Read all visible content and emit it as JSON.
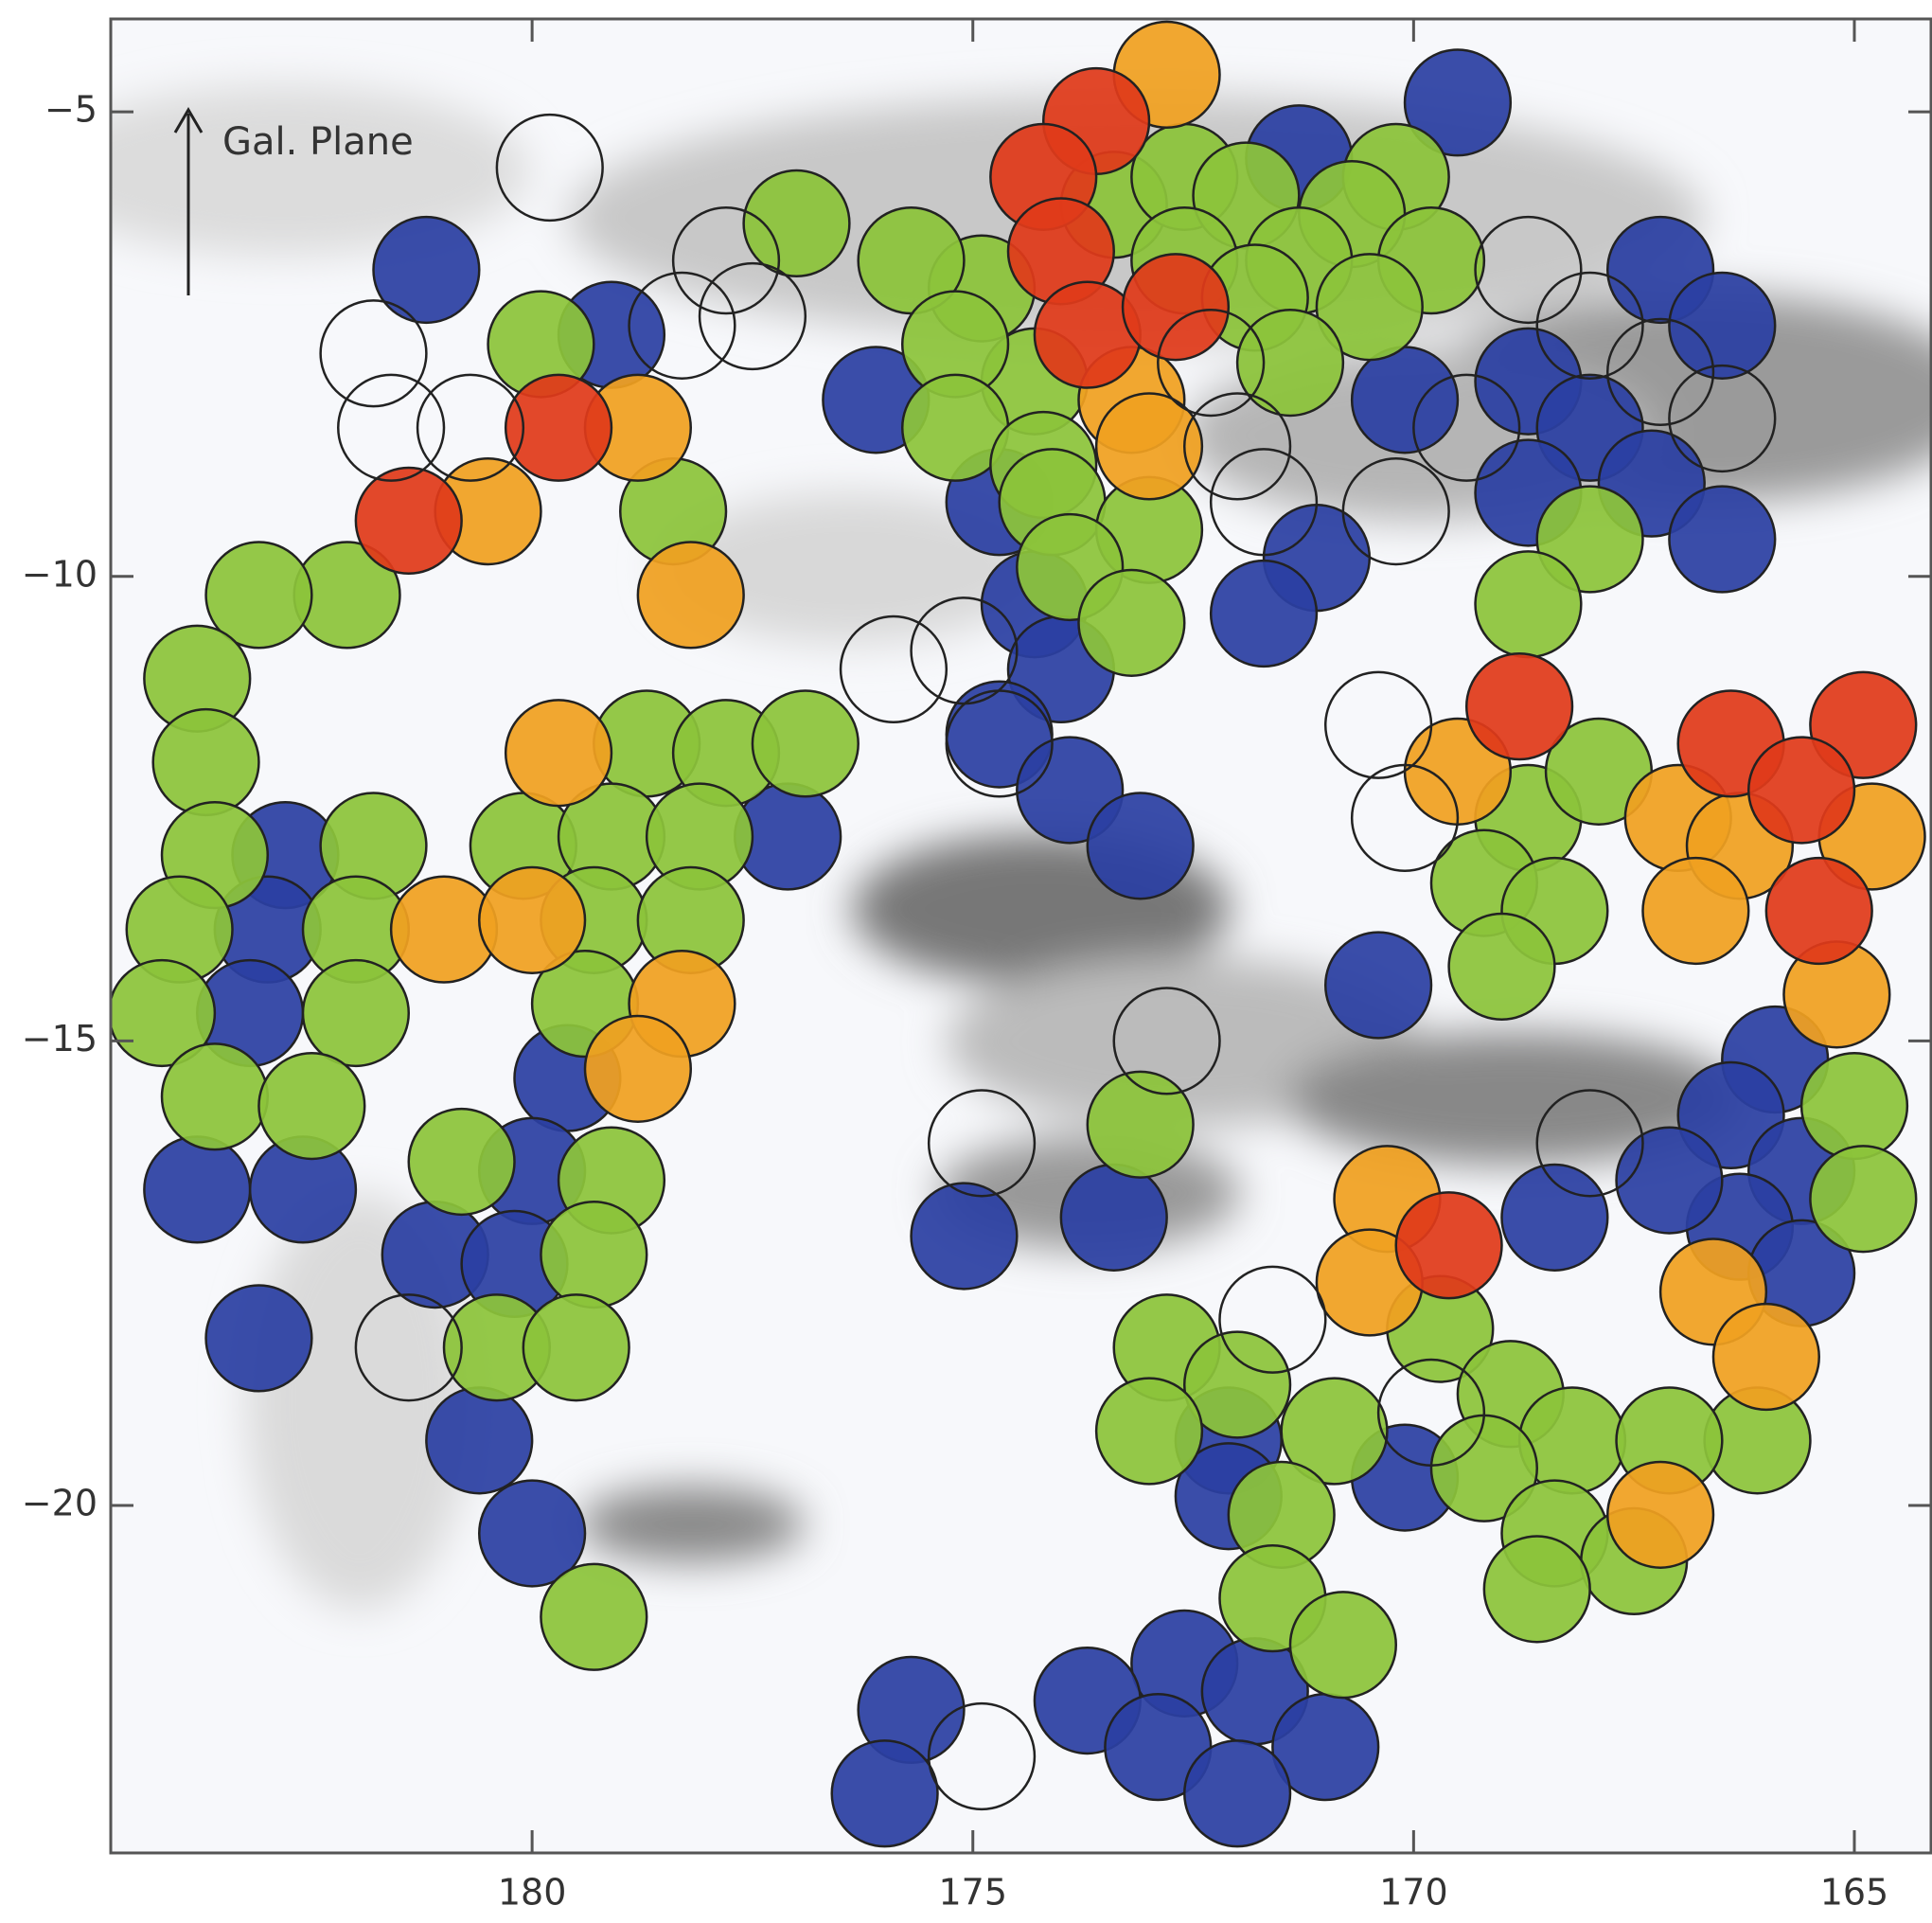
{
  "chart_data": {
    "type": "scatter",
    "annotation": "Gal. Plane",
    "xlim": [
      184.78,
      164.13
    ],
    "ylim": [
      -4.0,
      -23.74
    ],
    "xticks": [
      180,
      175,
      170,
      165
    ],
    "yticks": [
      {
        "value": -5,
        "label": "−5"
      },
      {
        "value": -10,
        "label": "−10"
      },
      {
        "value": -15,
        "label": "−15"
      },
      {
        "value": -20,
        "label": "−20"
      }
    ],
    "series": [
      {
        "color": "#2b3fa3",
        "x": [
          169.5,
          171.3,
          176.1,
          174.7,
          171.1,
          171.7,
          174.3,
          174.0,
          174.7,
          173.9,
          173.1,
          170.1,
          168.7,
          167.2,
          166.5,
          168.0,
          167.3,
          168.7,
          166.5,
          170.4,
          165.9,
          166.4,
          165.6,
          166.3,
          165.6,
          167.1,
          168.4,
          170.1,
          172.1,
          172.1,
          172.6,
          171.8,
          173.7,
          172.9,
          171.0,
          172.0,
          175.7,
          176.0,
          173.4,
          175.1,
          181.2,
          179.1,
          182.8,
          183.0,
          183.2,
          183.8,
          182.6,
          183.1,
          179.6,
          180.0,
          181.1,
          180.2,
          180.6,
          180.0,
          177.1
        ],
        "y": [
          -4.9,
          -5.5,
          -8.1,
          -9.2,
          -9.8,
          -10.4,
          -10.3,
          -11.0,
          -11.7,
          -12.3,
          -12.9,
          -8.1,
          -7.9,
          -6.7,
          -7.3,
          -8.4,
          -9.0,
          -9.1,
          -9.6,
          -14.4,
          -15.2,
          -15.8,
          -16.4,
          -17.0,
          -17.5,
          -16.5,
          -16.9,
          -19.7,
          -19.3,
          -19.9,
          -21.7,
          -22.0,
          -22.1,
          -22.6,
          -22.6,
          -23.1,
          -22.2,
          -23.1,
          -16.9,
          -17.1,
          -6.7,
          -7.4,
          -13.0,
          -13.8,
          -14.7,
          -16.6,
          -16.6,
          -18.2,
          -15.4,
          -16.4,
          -17.3,
          -17.4,
          -19.3,
          -20.3,
          -12.8
        ]
      },
      {
        "color": "#8cc43a",
        "x": [
          173.4,
          172.6,
          171.9,
          170.2,
          170.7,
          169.8,
          171.3,
          172.6,
          174.9,
          175.7,
          171.8,
          170.5,
          171.4,
          174.3,
          175.2,
          175.2,
          174.2,
          174.1,
          173.0,
          173.9,
          173.2,
          168.0,
          168.7,
          168.7,
          167.9,
          169.2,
          168.4,
          169.0,
          165.0,
          164.9,
          169.7,
          168.9,
          168.2,
          169.2,
          168.4,
          167.5,
          168.6,
          166.1,
          167.1,
          172.8,
          172.0,
          173.0,
          170.9,
          171.5,
          171.6,
          170.8,
          173.1,
          179.9,
          178.4,
          177.0,
          182.1,
          183.1,
          183.8,
          183.7,
          183.6,
          181.8,
          184.0,
          182.0,
          184.2,
          182.0,
          183.6,
          182.5,
          178.7,
          177.8,
          176.9,
          180.1,
          179.1,
          178.1,
          179.3,
          178.2,
          179.4,
          180.8,
          179.1,
          179.3,
          180.4,
          179.5,
          179.3
        ],
        "y": [
          -6.0,
          -5.7,
          -5.9,
          -5.7,
          -6.1,
          -6.6,
          -6.6,
          -6.6,
          -6.9,
          -6.6,
          -7.0,
          -7.1,
          -7.7,
          -7.9,
          -7.5,
          -8.4,
          -8.8,
          -9.2,
          -9.5,
          -9.9,
          -10.5,
          -9.6,
          -10.3,
          -12.6,
          -12.1,
          -13.3,
          -13.6,
          -14.2,
          -15.7,
          -16.7,
          -18.1,
          -18.8,
          -19.3,
          -19.6,
          -20.3,
          -20.6,
          -20.9,
          -19.3,
          -19.3,
          -18.3,
          -18.7,
          -19.2,
          -19.2,
          -20.1,
          -21.0,
          -21.5,
          -15.9,
          -7.5,
          -9.3,
          -6.2,
          -10.2,
          -10.2,
          -11.1,
          -12.0,
          -13.0,
          -12.9,
          -13.8,
          -13.8,
          -14.7,
          -14.7,
          -15.6,
          -15.7,
          -11.8,
          -11.9,
          -11.8,
          -12.9,
          -12.8,
          -12.8,
          -13.7,
          -13.7,
          -14.6,
          -16.3,
          -16.5,
          -17.3,
          -18.3,
          -18.3,
          -21.2
        ]
      },
      {
        "color": "#f0a020",
        "x": [
          172.8,
          173.2,
          173.0,
          178.8,
          180.5,
          178.2,
          169.5,
          167.0,
          166.3,
          164.8,
          166.8,
          165.2,
          170.3,
          170.5,
          166.6,
          166.0,
          167.2,
          181.0,
          180.0,
          179.7,
          178.3,
          178.8
        ],
        "y": [
          -4.6,
          -8.1,
          -8.6,
          -8.4,
          -9.3,
          -10.2,
          -12.1,
          -12.6,
          -12.9,
          -12.8,
          -13.6,
          -14.5,
          -16.7,
          -17.6,
          -17.7,
          -18.4,
          -20.1,
          -13.8,
          -13.7,
          -11.9,
          -14.6,
          -15.3
        ]
      },
      {
        "color": "#e03a1a",
        "x": [
          173.6,
          174.2,
          174.0,
          173.7,
          172.7,
          179.7,
          181.4,
          168.8,
          166.4,
          164.9,
          165.6,
          165.4,
          169.6
        ],
        "y": [
          -5.1,
          -5.7,
          -6.5,
          -7.4,
          -7.1,
          -8.4,
          -9.4,
          -11.4,
          -11.8,
          -11.6,
          -12.3,
          -13.6,
          -17.2
        ]
      },
      {
        "color": "none",
        "x": [
          179.8,
          181.8,
          181.6,
          180.7,
          178.3,
          177.5,
          177.8,
          172.3,
          172.0,
          171.7,
          170.2,
          169.4,
          168.7,
          168.0,
          167.2,
          166.5,
          170.4,
          170.1,
          168.0,
          171.6,
          169.8,
          174.9,
          172.8,
          174.9,
          175.9,
          175.1,
          174.7,
          181.4
        ],
        "y": [
          -5.6,
          -7.6,
          -8.4,
          -8.4,
          -7.3,
          -7.2,
          -6.6,
          -7.7,
          -8.6,
          -9.2,
          -9.3,
          -8.4,
          -6.7,
          -7.3,
          -7.8,
          -8.3,
          -11.6,
          -12.6,
          -16.1,
          -18.0,
          -19.0,
          -22.7,
          -15.0,
          -16.1,
          -11.0,
          -10.8,
          -11.8,
          -18.3
        ]
      }
    ]
  }
}
